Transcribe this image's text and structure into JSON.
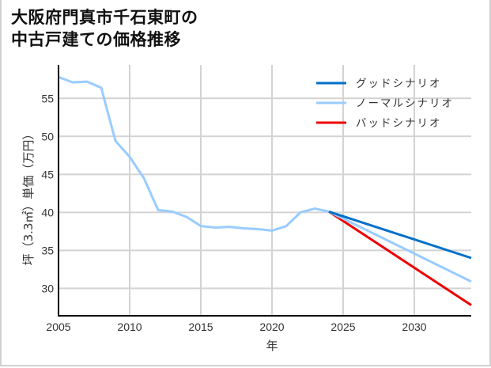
{
  "title": {
    "line1": "大阪府門真市千石東町の",
    "line2": "中古戸建ての価格推移"
  },
  "colors": {
    "good": "#0070c8",
    "normal": "#99ccff",
    "bad": "#ee0000",
    "grid": "#d3d3d3",
    "axis": "#000000"
  },
  "chart_data": {
    "type": "line",
    "title": "大阪府門真市千石東町の中古戸建ての価格推移",
    "xlabel": "年",
    "ylabel": "坪（3.3㎡）単価（万円）",
    "xlim": [
      2005,
      2034
    ],
    "ylim": [
      26.4,
      59.4
    ],
    "xticks": [
      2005,
      2010,
      2015,
      2020,
      2025,
      2030
    ],
    "yticks": [
      30,
      35,
      40,
      45,
      50,
      55
    ],
    "grid": true,
    "legend_position": "upper right",
    "history": {
      "x": [
        2005,
        2006,
        2007,
        2008,
        2009,
        2010,
        2011,
        2012,
        2013,
        2014,
        2015,
        2016,
        2017,
        2018,
        2019,
        2020,
        2021,
        2022,
        2023,
        2024
      ],
      "y": [
        57.8,
        57.1,
        57.2,
        56.4,
        49.4,
        47.3,
        44.5,
        40.3,
        40.1,
        39.4,
        38.2,
        38.0,
        38.1,
        37.9,
        37.8,
        37.6,
        38.2,
        40.0,
        40.5,
        40.1
      ]
    },
    "series": [
      {
        "name": "グッドシナリオ",
        "x": [
          2024,
          2034
        ],
        "values": [
          40.1,
          34.0
        ]
      },
      {
        "name": "ノーマルシナリオ",
        "x": [
          2024,
          2034
        ],
        "values": [
          40.1,
          30.9
        ]
      },
      {
        "name": "バッドシナリオ",
        "x": [
          2024,
          2034
        ],
        "values": [
          40.1,
          27.8
        ]
      }
    ]
  }
}
